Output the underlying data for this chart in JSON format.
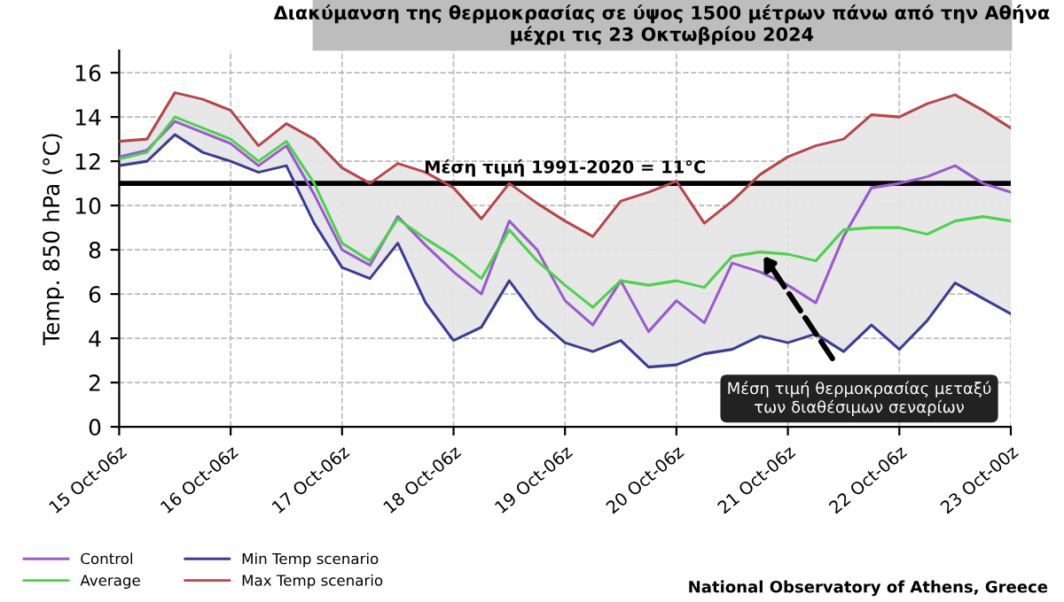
{
  "chart_data": {
    "type": "line",
    "title": "Διακύμανση της θερμοκρασίας σε ύψος 1500 μέτρων πάνω από την Αθήνα\nμέχρι τις 23 Οκτωβρίου 2024",
    "ylabel": "Temp. 850 hPa (°C)",
    "categories": [
      "15 Oct-06z",
      null,
      null,
      null,
      "16 Oct-06z",
      null,
      null,
      null,
      "17 Oct-06z",
      null,
      null,
      null,
      "18 Oct-06z",
      null,
      null,
      null,
      "19 Oct-06z",
      null,
      null,
      null,
      "20 Oct-06z",
      null,
      null,
      null,
      "21 Oct-06z",
      null,
      null,
      null,
      "22 Oct-06z",
      null,
      null,
      null,
      "23 Oct-00z"
    ],
    "ylim": [
      0,
      17
    ],
    "yticks": [
      0,
      2,
      4,
      6,
      8,
      10,
      12,
      14,
      16
    ],
    "grid": true,
    "legend": "bottom left",
    "marker": "none",
    "line_style": "solid",
    "series": [
      {
        "name": "Control",
        "color": "#9b59d0",
        "values": [
          12.2,
          12.5,
          13.8,
          13.3,
          12.8,
          11.8,
          12.7,
          10.5,
          8.0,
          7.3,
          9.5,
          8.2,
          7.0,
          6.0,
          9.3,
          8.0,
          5.7,
          4.6,
          6.6,
          4.3,
          5.7,
          4.7,
          7.4,
          7.0,
          6.4,
          5.6,
          8.6,
          10.8,
          11.0,
          11.3,
          11.8,
          11.0,
          10.6
        ]
      },
      {
        "name": "Average",
        "color": "#4cd24c",
        "values": [
          12.1,
          12.4,
          14.0,
          13.5,
          13.0,
          12.0,
          12.9,
          11.0,
          8.3,
          7.5,
          9.4,
          8.5,
          7.7,
          6.7,
          8.9,
          7.5,
          6.4,
          5.4,
          6.6,
          6.4,
          6.6,
          6.3,
          7.7,
          7.9,
          7.8,
          7.5,
          8.9,
          9.0,
          9.0,
          8.7,
          9.3,
          9.5,
          9.3
        ],
        "lower": [
          11.8,
          12.0,
          13.2,
          12.4,
          12.0,
          11.5,
          11.8,
          9.2,
          7.2,
          6.7,
          8.3,
          5.6,
          3.9,
          4.5,
          6.6,
          4.9,
          3.8,
          3.4,
          3.9,
          2.7,
          2.8,
          3.3,
          3.5,
          4.1,
          3.8,
          4.2,
          3.4,
          4.6,
          3.5,
          4.8,
          6.5,
          5.8,
          5.1
        ],
        "upper": [
          12.9,
          13.0,
          15.1,
          14.8,
          14.3,
          12.7,
          13.7,
          13.0,
          11.7,
          11.0,
          11.9,
          11.5,
          10.8,
          9.4,
          11.0,
          10.1,
          9.3,
          8.6,
          10.2,
          10.6,
          11.1,
          9.2,
          10.2,
          11.4,
          12.2,
          12.7,
          13.0,
          14.1,
          14.0,
          14.6,
          15.0,
          14.3,
          13.5
        ]
      },
      {
        "name": "Min Temp scenario",
        "color": "#3b3b9a",
        "values": [
          11.8,
          12.0,
          13.2,
          12.4,
          12.0,
          11.5,
          11.8,
          9.2,
          7.2,
          6.7,
          8.3,
          5.6,
          3.9,
          4.5,
          6.6,
          4.9,
          3.8,
          3.4,
          3.9,
          2.7,
          2.8,
          3.3,
          3.5,
          4.1,
          3.8,
          4.2,
          3.4,
          4.6,
          3.5,
          4.8,
          6.5,
          5.8,
          5.1
        ]
      },
      {
        "name": "Max Temp scenario",
        "color": "#b5474b",
        "values": [
          12.9,
          13.0,
          15.1,
          14.8,
          14.3,
          12.7,
          13.7,
          13.0,
          11.7,
          11.0,
          11.9,
          11.5,
          10.8,
          9.4,
          11.0,
          10.1,
          9.3,
          8.6,
          10.2,
          10.6,
          11.1,
          9.2,
          10.2,
          11.4,
          12.2,
          12.7,
          13.0,
          14.1,
          14.0,
          14.6,
          15.0,
          14.3,
          13.5
        ]
      }
    ],
    "ref_lines": [
      {
        "axis": "y",
        "value": 11,
        "label": "Μέση τιμή 1991-2020 = 11°C",
        "color": "#000000"
      }
    ],
    "annotations": [
      "Μέση τιμή θερμοκρασίας μεταξύ\nτων διαθέσιμων σεναρίων",
      "National Observatory of Athens, Greece"
    ]
  }
}
